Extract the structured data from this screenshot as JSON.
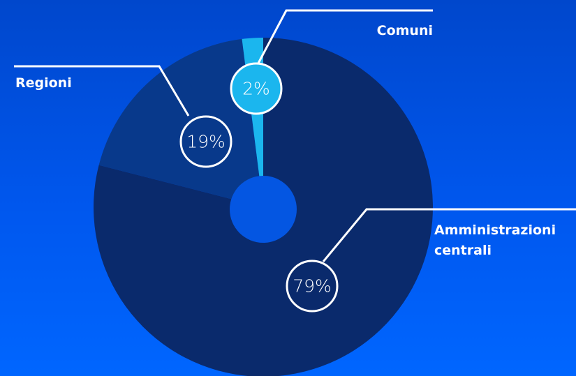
{
  "chart_data": {
    "type": "pie",
    "categories": [
      "Amministrazioni centrali",
      "Regioni",
      "Comuni"
    ],
    "values": [
      79,
      19,
      2
    ],
    "value_labels": [
      "79%",
      "19%",
      "2%"
    ],
    "colors": [
      "#0a2a6c",
      "#08398b",
      "#1bb6ee"
    ]
  }
}
